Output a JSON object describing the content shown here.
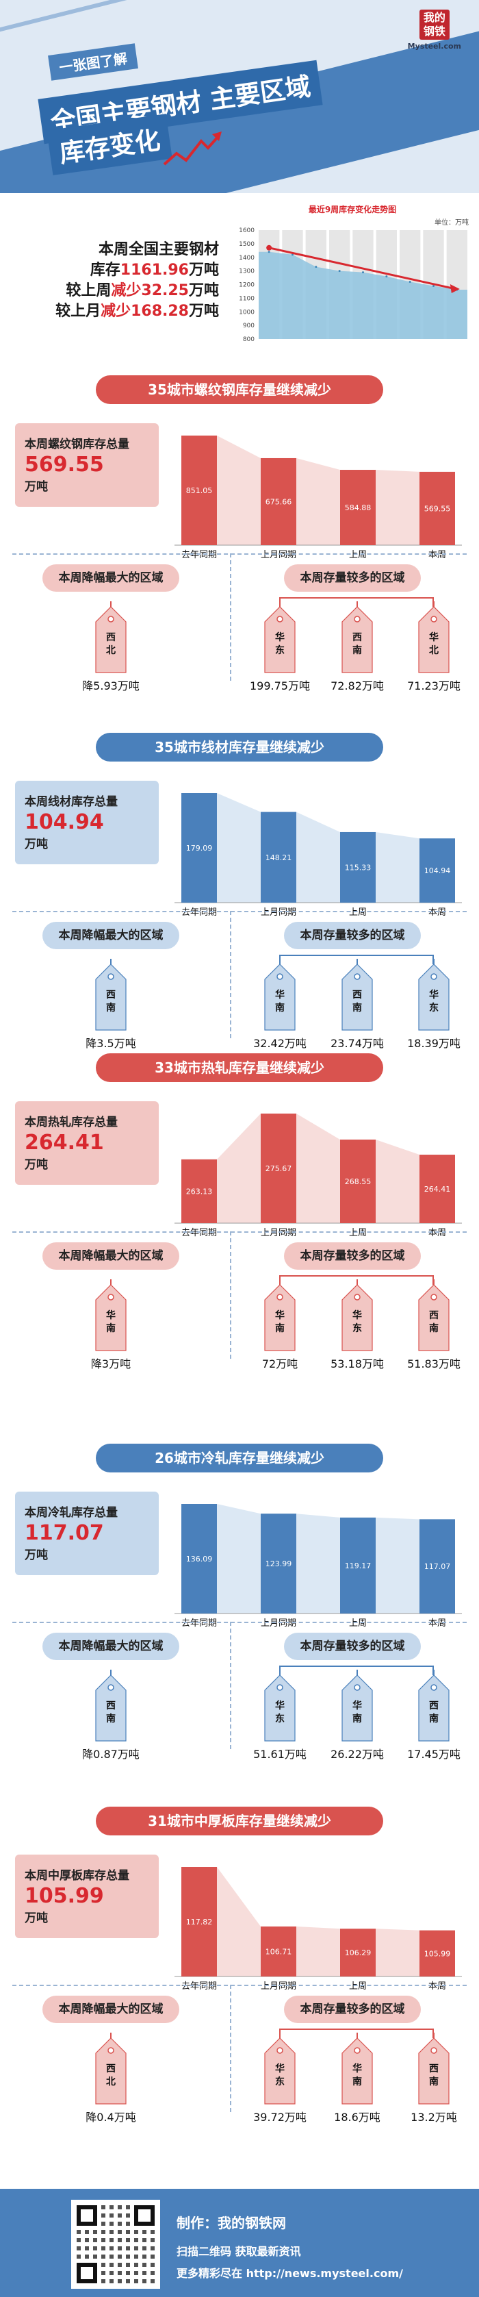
{
  "header": {
    "tagline": "一张图了解",
    "title_line1": "全国主要钢材 主要区域",
    "title_line2": "库存变化",
    "brand_logo": "我的钢铁",
    "brand_site": "Mysteel.com"
  },
  "summary": {
    "line1": "本周全国主要钢材",
    "line2_pre": "库存",
    "line2_val": "1161.96",
    "line2_post": "万吨",
    "line3_pre": "较上周",
    "line3_val": "减少32.25",
    "line3_post": "万吨",
    "line4_pre": "较上月",
    "line4_val": "减少168.28",
    "line4_post": "万吨"
  },
  "chart_data": [
    {
      "type": "area",
      "title": "最近9周库存变化走势图",
      "unit": "单位：万吨",
      "y_ticks": [
        "1600",
        "1500",
        "1400",
        "1300",
        "1200",
        "1100",
        "1000",
        "900",
        "800"
      ],
      "ylim": [
        800,
        1600
      ],
      "values": [
        1440,
        1420,
        1330,
        1300,
        1290,
        1260,
        1220,
        1190,
        1162
      ],
      "trend_color": "#d8282f",
      "fill_color": "#8ec3df"
    },
    {
      "type": "bar",
      "section": "螺纹钢",
      "categories": [
        "去年同期",
        "上月同期",
        "上周",
        "本周"
      ],
      "values": [
        851.05,
        675.66,
        584.88,
        569.55
      ],
      "value_labels": [
        "851.05",
        "675.66",
        "584.88",
        "569.55"
      ],
      "color": "#d9534f"
    },
    {
      "type": "bar",
      "section": "线材",
      "categories": [
        "去年同期",
        "上月同期",
        "上周",
        "本周"
      ],
      "values": [
        179.09,
        148.21,
        115.33,
        104.94
      ],
      "value_labels": [
        "179.09",
        "148.21",
        "115.33",
        "104.94"
      ],
      "color": "#4a80bb"
    },
    {
      "type": "bar",
      "section": "热轧",
      "categories": [
        "去年同期",
        "上月同期",
        "上周",
        "本周"
      ],
      "values": [
        263.13,
        275.67,
        268.55,
        264.41
      ],
      "value_labels": [
        "263.13",
        "275.67",
        "268.55",
        "264.41"
      ],
      "color": "#d9534f"
    },
    {
      "type": "bar",
      "section": "冷轧",
      "categories": [
        "去年同期",
        "上月同期",
        "上周",
        "本周"
      ],
      "values": [
        136.09,
        123.99,
        119.17,
        117.07
      ],
      "value_labels": [
        "136.09",
        "123.99",
        "119.17",
        "117.07"
      ],
      "color": "#4a80bb"
    },
    {
      "type": "bar",
      "section": "中厚板",
      "categories": [
        "去年同期",
        "上月同期",
        "上周",
        "本周"
      ],
      "values": [
        117.82,
        106.71,
        106.29,
        105.99
      ],
      "value_labels": [
        "117.82",
        "106.71",
        "106.29",
        "105.99"
      ],
      "color": "#d9534f"
    }
  ],
  "sections": [
    {
      "theme": "red",
      "banner": "35城市螺纹钢库存量继续减少",
      "total_label": "本周螺纹钢库存总量",
      "total_value": "569.55",
      "total_unit": "万吨",
      "drop_title": "本周降幅最大的区域",
      "drop_region": [
        "西",
        "北"
      ],
      "drop_value": "降5.93万吨",
      "more_title": "本周存量较多的区域",
      "more_regions": [
        {
          "name": [
            "华",
            "东"
          ],
          "value": "199.75万吨"
        },
        {
          "name": [
            "西",
            "南"
          ],
          "value": "72.82万吨"
        },
        {
          "name": [
            "华",
            "北"
          ],
          "value": "71.23万吨"
        }
      ]
    },
    {
      "theme": "blue",
      "banner": "35城市线材库存量继续减少",
      "total_label": "本周线材库存总量",
      "total_value": "104.94",
      "total_unit": "万吨",
      "drop_title": "本周降幅最大的区域",
      "drop_region": [
        "西",
        "南"
      ],
      "drop_value": "降3.5万吨",
      "more_title": "本周存量较多的区域",
      "more_regions": [
        {
          "name": [
            "华",
            "南"
          ],
          "value": "32.42万吨"
        },
        {
          "name": [
            "西",
            "南"
          ],
          "value": "23.74万吨"
        },
        {
          "name": [
            "华",
            "东"
          ],
          "value": "18.39万吨"
        }
      ]
    },
    {
      "theme": "red",
      "banner": "33城市热轧库存量继续减少",
      "total_label": "本周热轧库存总量",
      "total_value": "264.41",
      "total_unit": "万吨",
      "drop_title": "本周降幅最大的区域",
      "drop_region": [
        "华",
        "南"
      ],
      "drop_value": "降3万吨",
      "more_title": "本周存量较多的区域",
      "more_regions": [
        {
          "name": [
            "华",
            "南"
          ],
          "value": "72万吨"
        },
        {
          "name": [
            "华",
            "东"
          ],
          "value": "53.18万吨"
        },
        {
          "name": [
            "西",
            "南"
          ],
          "value": "51.83万吨"
        }
      ]
    },
    {
      "theme": "blue",
      "banner": "26城市冷轧库存量继续减少",
      "total_label": "本周冷轧库存总量",
      "total_value": "117.07",
      "total_unit": "万吨",
      "drop_title": "本周降幅最大的区域",
      "drop_region": [
        "西",
        "南"
      ],
      "drop_value": "降0.87万吨",
      "more_title": "本周存量较多的区域",
      "more_regions": [
        {
          "name": [
            "华",
            "东"
          ],
          "value": "51.61万吨"
        },
        {
          "name": [
            "华",
            "南"
          ],
          "value": "26.22万吨"
        },
        {
          "name": [
            "西",
            "南"
          ],
          "value": "17.45万吨"
        }
      ]
    },
    {
      "theme": "red",
      "banner": "31城市中厚板库存量继续减少",
      "total_label": "本周中厚板库存总量",
      "total_value": "105.99",
      "total_unit": "万吨",
      "drop_title": "本周降幅最大的区域",
      "drop_region": [
        "西",
        "北"
      ],
      "drop_value": "降0.4万吨",
      "more_title": "本周存量较多的区域",
      "more_regions": [
        {
          "name": [
            "华",
            "东"
          ],
          "value": "39.72万吨"
        },
        {
          "name": [
            "华",
            "南"
          ],
          "value": "18.6万吨"
        },
        {
          "name": [
            "西",
            "南"
          ],
          "value": "13.2万吨"
        }
      ]
    }
  ],
  "footer": {
    "producer": "制作：我的钢铁网",
    "scan": "扫描二维码 获取最新资讯",
    "more": "更多精彩尽在 http://news.mysteel.com/"
  },
  "colors": {
    "red": "#d9534f",
    "blue": "#4a80bb",
    "light_red": "#f2c6c3",
    "light_blue": "#c5d8ec",
    "accent": "#d8282f"
  }
}
